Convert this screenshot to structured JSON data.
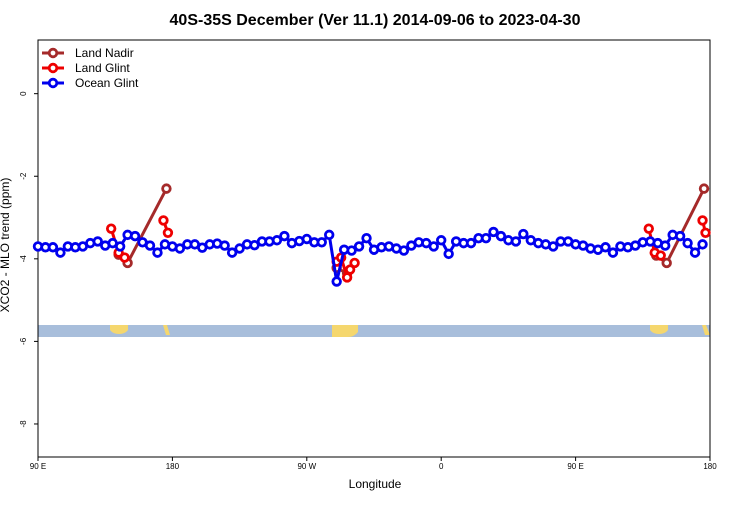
{
  "chart_data": {
    "type": "line",
    "title": "40S-35S December (Ver 11.1)   2014-09-06 to 2023-04-30",
    "x_label": "Longitude",
    "y_label": "XCO2 - MLO trend (ppm)",
    "xlim": [
      90,
      540
    ],
    "xticks": [
      {
        "value": 90,
        "label": "90 E"
      },
      180,
      {
        "value": 270,
        "label": "90 W"
      },
      {
        "value": 360,
        "label": "0"
      },
      {
        "value": 450,
        "label": "90 E"
      },
      {
        "value": 540,
        "label": "180"
      }
    ],
    "ylim": [
      -8.8,
      1.3
    ],
    "yticks": [
      0,
      -2,
      -4,
      -6,
      -8
    ],
    "legend": "top-left",
    "series": [
      {
        "name": "Land Nadir",
        "color": "#a52a2a",
        "x": [
          144,
          150,
          176,
          230,
          290,
          297,
          400,
          504,
          511,
          536
        ],
        "values": [
          -3.9,
          -4.1,
          -2.3,
          null,
          -4.22,
          -4.35,
          null,
          -3.92,
          -4.1,
          -2.3
        ]
      },
      {
        "name": "Land Glint",
        "color": "#ee0000",
        "x": [
          139,
          144,
          148,
          160,
          174,
          177,
          230,
          290,
          293,
          297,
          299,
          302,
          400,
          499,
          503,
          507,
          520,
          535,
          537
        ],
        "values": [
          -3.27,
          -3.85,
          -3.97,
          null,
          -3.07,
          -3.37,
          null,
          -4.07,
          -3.97,
          -4.45,
          -4.26,
          -4.1,
          null,
          -3.27,
          -3.85,
          -3.92,
          null,
          -3.07,
          -3.37
        ]
      },
      {
        "name": "Ocean Glint",
        "color": "#0000ee",
        "x": [
          90,
          95,
          100,
          105,
          110,
          115,
          120,
          125,
          130,
          135,
          140,
          145,
          150,
          155,
          160,
          165,
          170,
          175,
          180,
          185,
          190,
          195,
          200,
          205,
          210,
          215,
          220,
          225,
          230,
          235,
          240,
          245,
          250,
          255,
          260,
          265,
          270,
          275,
          280,
          285,
          290,
          295,
          300,
          305,
          310,
          315,
          320,
          325,
          330,
          335,
          340,
          345,
          350,
          355,
          360,
          365,
          370,
          375,
          380,
          385,
          390,
          395,
          400,
          405,
          410,
          415,
          420,
          425,
          430,
          435,
          440,
          445,
          450,
          455,
          460,
          465,
          470,
          475,
          480,
          485,
          490,
          495,
          500,
          505,
          510,
          515,
          520,
          525,
          530,
          535
        ],
        "values": [
          -3.7,
          -3.72,
          -3.72,
          -3.85,
          -3.7,
          -3.72,
          -3.7,
          -3.62,
          -3.58,
          -3.68,
          -3.62,
          -3.7,
          -3.42,
          -3.45,
          -3.6,
          -3.68,
          -3.85,
          -3.65,
          -3.7,
          -3.75,
          -3.65,
          -3.65,
          -3.73,
          -3.65,
          -3.63,
          -3.68,
          -3.85,
          -3.75,
          -3.65,
          -3.67,
          -3.58,
          -3.58,
          -3.55,
          -3.45,
          -3.62,
          -3.57,
          -3.52,
          -3.6,
          -3.6,
          -3.42,
          -4.55,
          -3.78,
          -3.8,
          -3.7,
          -3.5,
          -3.78,
          -3.72,
          -3.7,
          -3.75,
          -3.8,
          -3.68,
          -3.6,
          -3.62,
          -3.7,
          -3.55,
          -3.88,
          -3.58,
          -3.62,
          -3.62,
          -3.5,
          -3.5,
          -3.35,
          -3.45,
          -3.55,
          -3.58,
          -3.4,
          -3.55,
          -3.62,
          -3.65,
          -3.7,
          -3.58,
          -3.58,
          -3.65,
          -3.68,
          -3.75,
          -3.78,
          -3.72,
          -3.85,
          -3.7,
          -3.72,
          -3.68,
          -3.6,
          -3.58,
          -3.62,
          -3.68,
          -3.42,
          -3.45,
          -3.62,
          -3.85,
          -3.65
        ]
      }
    ]
  }
}
